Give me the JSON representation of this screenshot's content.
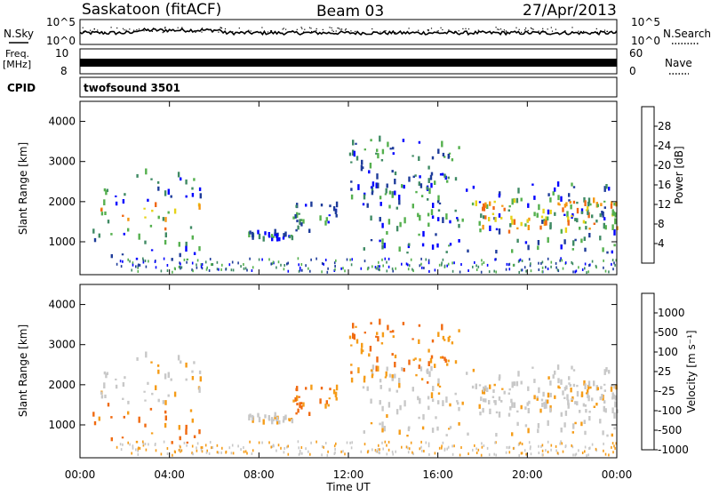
{
  "header": {
    "station": "Saskatoon (fitACF)",
    "beam": "Beam 03",
    "date": "27/Apr/2013"
  },
  "top_panels": {
    "nsky_label": "N.Sky",
    "nsky_ticks": [
      "10^5",
      "10^0"
    ],
    "nsearch_label": "N.Search",
    "nsearch_ticks": [
      "10^5",
      "10^0"
    ],
    "freq_label_1": "Freq.",
    "freq_label_2": "[MHz]",
    "freq_ticks": [
      "10",
      "8"
    ],
    "nave_label": "Nave",
    "nave_ticks": [
      "60",
      "0"
    ],
    "cpid_label": "CPID",
    "cpid_value": "twofsound 3501"
  },
  "chart_data": [
    {
      "type": "heatmap",
      "name": "power",
      "ylabel": "Slant Range [km]",
      "ylim": [
        180,
        4500
      ],
      "yticks": [
        "4000",
        "3000",
        "2000",
        "1000"
      ],
      "yticks_values": [
        4000,
        3000,
        2000,
        1000
      ],
      "xlim_hours": [
        0,
        24
      ],
      "colorbar": {
        "label": "Power [dB]",
        "ticks": [
          "28",
          "24",
          "20",
          "16",
          "12",
          "8",
          "4"
        ],
        "colors": [
          "#0000ff",
          "#1e3c9a",
          "#3f8a64",
          "#55b04e",
          "#e6d318",
          "#f59712",
          "#f06814",
          "#e61e0f"
        ]
      },
      "echo_regions": [
        {
          "t": [
            0.5,
            5.5
          ],
          "range": [
            500,
            2700
          ],
          "note": "stronger near 1300-1800 km"
        },
        {
          "t": [
            7.5,
            9.5
          ],
          "range": [
            1000,
            1200
          ]
        },
        {
          "t": [
            9.5,
            11.5
          ],
          "range": [
            1200,
            1900
          ]
        },
        {
          "t": [
            12.0,
            17.0
          ],
          "range": [
            2000,
            3500
          ]
        },
        {
          "t": [
            12.5,
            24.0
          ],
          "range": [
            700,
            2400
          ]
        },
        {
          "t": [
            17.5,
            24.0
          ],
          "range": [
            1200,
            2000
          ],
          "note": "strong band"
        }
      ]
    },
    {
      "type": "heatmap",
      "name": "velocity",
      "ylabel": "Slant Range [km]",
      "ylim": [
        180,
        4500
      ],
      "yticks": [
        "4000",
        "3000",
        "2000",
        "1000"
      ],
      "yticks_values": [
        4000,
        3000,
        2000,
        1000
      ],
      "xlabel": "Time UT",
      "xticks": [
        "00:00",
        "04:00",
        "08:00",
        "12:00",
        "16:00",
        "20:00",
        "00:00"
      ],
      "xticks_hours": [
        0,
        4,
        8,
        12,
        16,
        20,
        24
      ],
      "colorbar": {
        "label": "Velocity [m s⁻¹]",
        "ticks": [
          "1000",
          "500",
          "100",
          "25",
          "-25",
          "-100",
          "-500",
          "-1000"
        ],
        "colors": [
          "#1e3ca8",
          "#2e7a58",
          "#55b04e",
          "#c8c8c8",
          "#c8c8c8",
          "#f59c18",
          "#f06a10",
          "#e8280f"
        ]
      }
    }
  ]
}
